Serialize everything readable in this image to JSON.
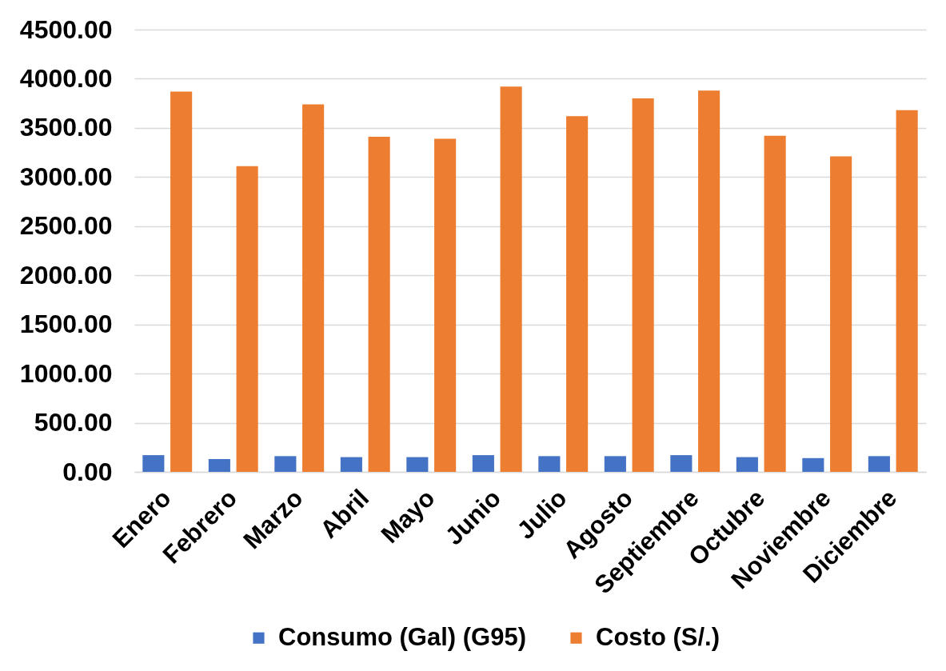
{
  "chart_data": {
    "type": "bar",
    "categories": [
      "Enero",
      "Febrero",
      "Marzo",
      "Abril",
      "Mayo",
      "Junio",
      "Julio",
      "Agosto",
      "Septiembre",
      "Octubre",
      "Noviembre",
      "Diciembre"
    ],
    "series": [
      {
        "name": "Consumo (Gal) (G95)",
        "color": "#4472c4",
        "values": [
          170,
          130,
          160,
          150,
          150,
          170,
          160,
          160,
          170,
          150,
          140,
          160
        ]
      },
      {
        "name": "Costo (S/.)",
        "color": "#ed7d31",
        "values": [
          3870,
          3110,
          3740,
          3410,
          3390,
          3920,
          3620,
          3800,
          3880,
          3420,
          3210,
          3680
        ]
      }
    ],
    "ylim": [
      0,
      4500
    ],
    "yticks": [
      {
        "value": 0,
        "label": "0.00"
      },
      {
        "value": 500,
        "label": "500.00"
      },
      {
        "value": 1000,
        "label": "1000.00"
      },
      {
        "value": 1500,
        "label": "1500.00"
      },
      {
        "value": 2000,
        "label": "2000.00"
      },
      {
        "value": 2500,
        "label": "2500.00"
      },
      {
        "value": 3000,
        "label": "3000.00"
      },
      {
        "value": 3500,
        "label": "3500.00"
      },
      {
        "value": 4000,
        "label": "4000.00"
      },
      {
        "value": 4500,
        "label": "4500.00"
      }
    ],
    "grid": "y",
    "legend": "bottom"
  }
}
